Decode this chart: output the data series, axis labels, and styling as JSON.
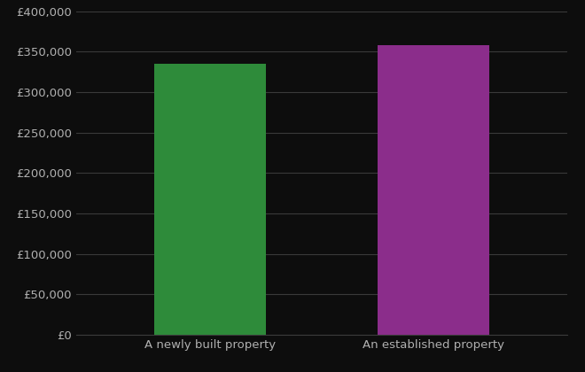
{
  "categories": [
    "A newly built property",
    "An established property"
  ],
  "values": [
    335000,
    358000
  ],
  "bar_colors": [
    "#2e8b3a",
    "#8b2d8b"
  ],
  "background_color": "#0d0d0d",
  "text_color": "#b0b0b0",
  "grid_color": "#3a3a3a",
  "ylim": [
    0,
    400000
  ],
  "ytick_interval": 50000,
  "bar_width": 0.5
}
